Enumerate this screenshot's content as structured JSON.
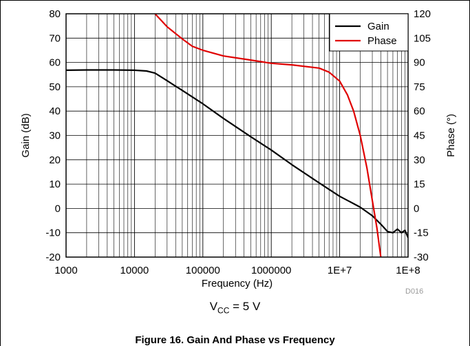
{
  "chart_data": {
    "type": "line",
    "title": "",
    "xlabel": "Frequency (Hz)",
    "ylabel": "Gain (dB)",
    "y2label": "Phase (°)",
    "xscale": "log",
    "xlim": [
      1000,
      100000000
    ],
    "ylim": [
      -20,
      80
    ],
    "y2lim": [
      -30,
      120
    ],
    "grid": true,
    "legend_position": "top-right",
    "x_tick_labels": [
      "1000",
      "10000",
      "100000",
      "1000000",
      "1E+7",
      "1E+8"
    ],
    "y_tick_labels": [
      "80",
      "70",
      "60",
      "50",
      "40",
      "30",
      "20",
      "10",
      "0",
      "-10",
      "-20"
    ],
    "y2_tick_labels": [
      "120",
      "105",
      "90",
      "75",
      "60",
      "45",
      "30",
      "15",
      "0",
      "-15",
      "-30"
    ],
    "series": [
      {
        "name": "Gain",
        "axis": "left",
        "color": "#000000",
        "x": [
          1000,
          2000,
          5000,
          10000,
          15000,
          20000,
          30000,
          50000,
          100000,
          200000,
          500000,
          1000000,
          2000000,
          5000000,
          10000000,
          20000000,
          30000000,
          40000000,
          50000000,
          60000000,
          70000000,
          80000000,
          90000000,
          100000000
        ],
        "y": [
          56.8,
          56.9,
          56.9,
          56.8,
          56.5,
          55.6,
          52.5,
          48.5,
          43,
          37,
          29.5,
          24,
          18,
          10.5,
          5,
          0.5,
          -3,
          -6.5,
          -9.5,
          -10,
          -8.5,
          -10,
          -9,
          -12
        ]
      },
      {
        "name": "Phase",
        "axis": "right",
        "color": "#e00000",
        "x": [
          20000,
          30000,
          50000,
          70000,
          100000,
          200000,
          500000,
          1000000,
          2000000,
          5000000,
          7000000,
          10000000,
          13000000,
          16000000,
          20000000,
          25000000,
          30000000,
          35000000,
          40000000
        ],
        "y": [
          120,
          112,
          104.5,
          100,
          97.5,
          94,
          91.5,
          89.5,
          88.5,
          86.5,
          84,
          78.5,
          70,
          60,
          45,
          25,
          5,
          -12,
          -30
        ]
      }
    ]
  },
  "code_label": "D016",
  "condition": {
    "prefix": "V",
    "subscript": "CC",
    "suffix": " = 5 V"
  },
  "caption": "Figure 16. Gain And Phase vs Frequency"
}
